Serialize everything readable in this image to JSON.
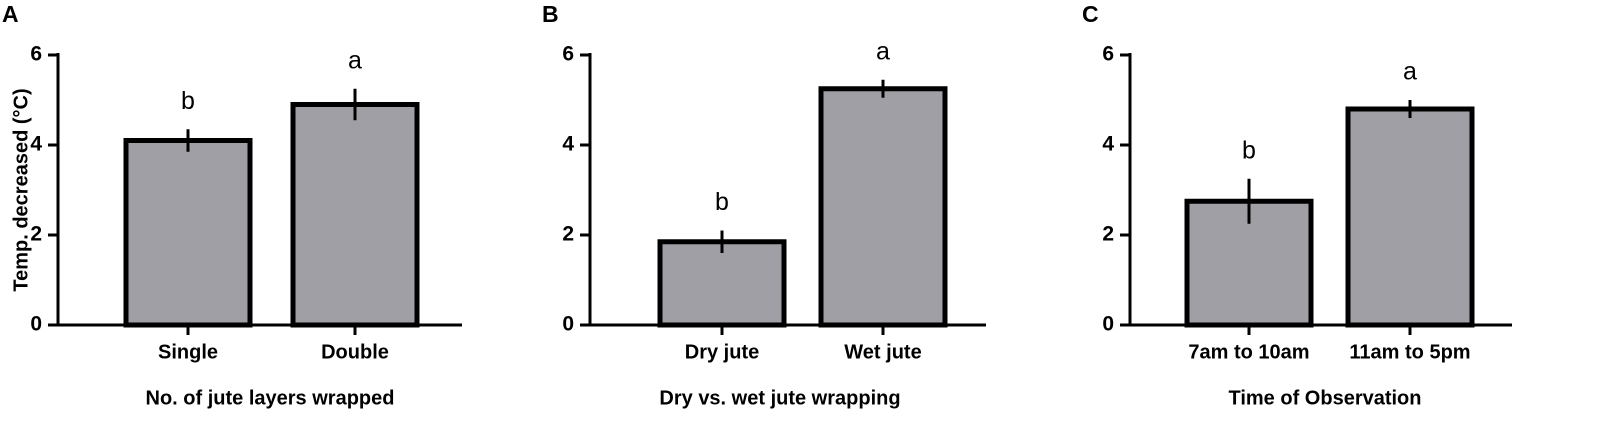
{
  "chart_data": [
    {
      "type": "bar",
      "panel": "A",
      "ylabel": "Temp. decreased (°C)",
      "xlabel": "No. of jute layers wrapped",
      "categories": [
        "Single",
        "Double"
      ],
      "values": [
        4.1,
        4.9
      ],
      "errors": [
        0.25,
        0.35
      ],
      "letters": [
        "b",
        "a"
      ],
      "color": "#a09fa5",
      "ylim": [
        0,
        6
      ],
      "yticks": [
        0,
        2,
        4,
        6
      ]
    },
    {
      "type": "bar",
      "panel": "B",
      "xlabel": "Dry vs. wet jute wrapping",
      "categories": [
        "Dry jute",
        "Wet jute"
      ],
      "values": [
        1.85,
        5.25
      ],
      "errors": [
        0.25,
        0.2
      ],
      "letters": [
        "b",
        "a"
      ],
      "color": "#a09fa5",
      "ylim": [
        0,
        6
      ],
      "yticks": [
        0,
        2,
        4,
        6
      ]
    },
    {
      "type": "bar",
      "panel": "C",
      "xlabel": "Time of Observation",
      "categories": [
        "7am to 10am",
        "11am to 5pm"
      ],
      "values": [
        2.75,
        4.8
      ],
      "errors": [
        0.5,
        0.2
      ],
      "letters": [
        "b",
        "a"
      ],
      "color": "#a09fa5",
      "ylim": [
        0,
        6
      ],
      "yticks": [
        0,
        2,
        4,
        6
      ]
    }
  ]
}
